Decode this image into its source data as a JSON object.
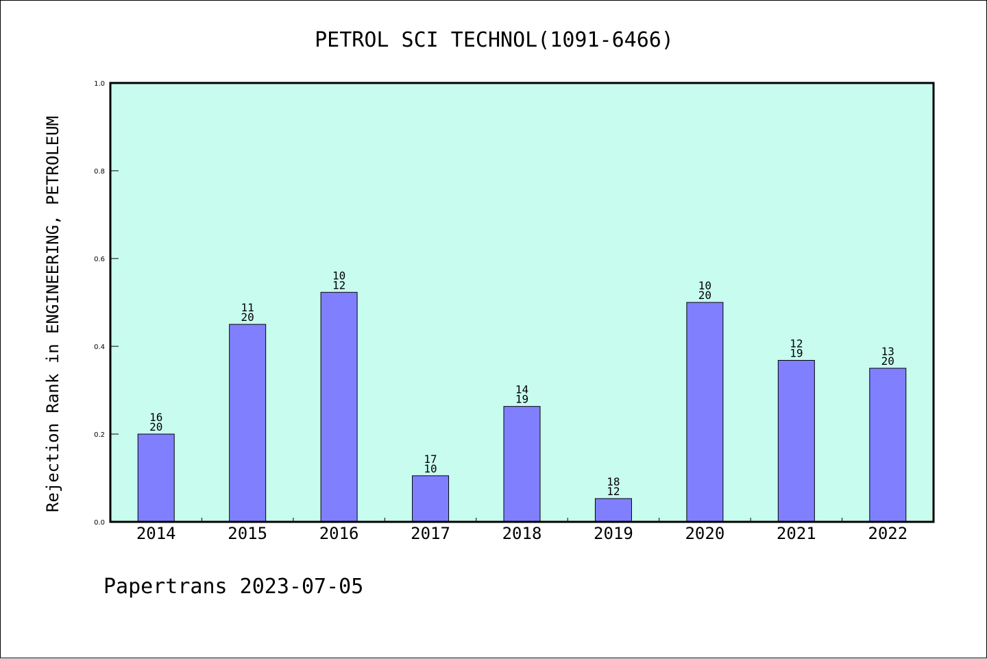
{
  "chart_data": {
    "type": "bar",
    "title": "PETROL SCI TECHNOL(1091-6466)",
    "xlabel": "",
    "ylabel": "Rejection Rank in ENGINEERING, PETROLEUM",
    "ylim": [
      0,
      1.0
    ],
    "yticks": [
      "0.0",
      "0.2",
      "0.4",
      "0.6",
      "0.8",
      "1.0"
    ],
    "categories": [
      "2014",
      "2015",
      "2016",
      "2017",
      "2018",
      "2019",
      "2020",
      "2021",
      "2022"
    ],
    "values": [
      0.2,
      0.45,
      0.523,
      0.105,
      0.263,
      0.053,
      0.5,
      0.368,
      0.35
    ],
    "labels_top": [
      "16",
      "11",
      "10",
      "17",
      "14",
      "18",
      "10",
      "12",
      "13"
    ],
    "labels_bottom": [
      "20",
      "20",
      "12",
      "10",
      "19",
      "12",
      "20",
      "19",
      "20"
    ],
    "grid": false,
    "legend": "none",
    "colors": {
      "plot_background": "#c8fcee",
      "bar_fill": "#8080ff",
      "bar_stroke": "#000000"
    }
  },
  "footer": "Papertrans 2023-07-05"
}
